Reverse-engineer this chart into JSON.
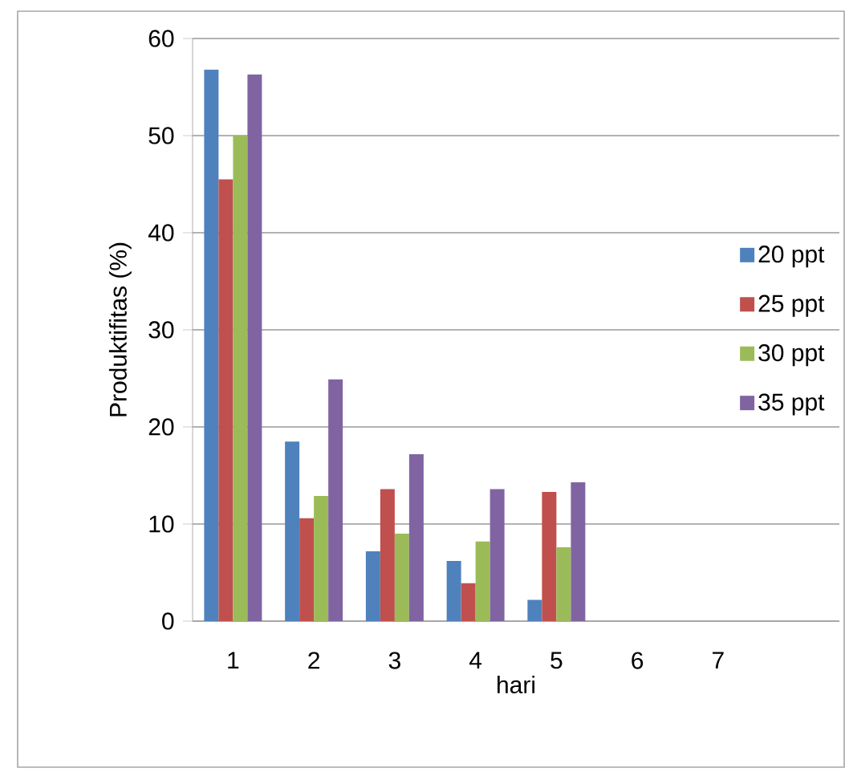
{
  "chart_data": {
    "type": "bar",
    "xlabel": "hari",
    "ylabel": "Produktifitas (%)",
    "categories": [
      "1",
      "2",
      "3",
      "4",
      "5",
      "6",
      "7",
      null
    ],
    "series": [
      {
        "name": "20 ppt",
        "color": "#4f81bd",
        "values": [
          56.8,
          18.5,
          7.2,
          6.2,
          2.2,
          null,
          null,
          null
        ]
      },
      {
        "name": "25 ppt",
        "color": "#c0504d",
        "values": [
          45.5,
          10.6,
          13.6,
          3.9,
          13.3,
          null,
          null,
          null
        ]
      },
      {
        "name": "30 ppt",
        "color": "#9bbb59",
        "values": [
          50.0,
          12.9,
          9.0,
          8.2,
          7.6,
          null,
          null,
          null
        ]
      },
      {
        "name": "35 ppt",
        "color": "#8064a2",
        "values": [
          56.3,
          24.9,
          17.2,
          13.6,
          14.3,
          null,
          null,
          null
        ]
      }
    ],
    "ylim": [
      0,
      60
    ],
    "yticks": [
      0,
      10,
      20,
      30,
      40,
      50,
      60
    ],
    "grid": "y",
    "legend": "right"
  }
}
